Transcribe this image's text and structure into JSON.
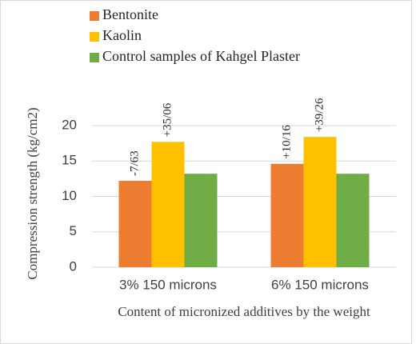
{
  "chart_data": {
    "type": "bar",
    "x_label": "Content of micronized additives by the weight",
    "y_label": "Compression strength (kg/cm2)",
    "categories": [
      "3% 150 microns",
      "6% 150 microns"
    ],
    "series": [
      {
        "name": "Bentonite",
        "color": "#ed7d31",
        "values": [
          12.2,
          14.6
        ],
        "annotations": [
          "-7/63",
          "+10/16"
        ]
      },
      {
        "name": "Kaolin",
        "color": "#ffc000",
        "values": [
          17.7,
          18.4
        ],
        "annotations": [
          "+35/06",
          "+39/26"
        ]
      },
      {
        "name": "Control samples of Kahgel Plaster",
        "color": "#70ad47",
        "values": [
          13.2,
          13.2
        ]
      }
    ],
    "ylim": [
      0,
      20
    ],
    "yticks": [
      0,
      5,
      10,
      15,
      20
    ],
    "grid": true
  }
}
